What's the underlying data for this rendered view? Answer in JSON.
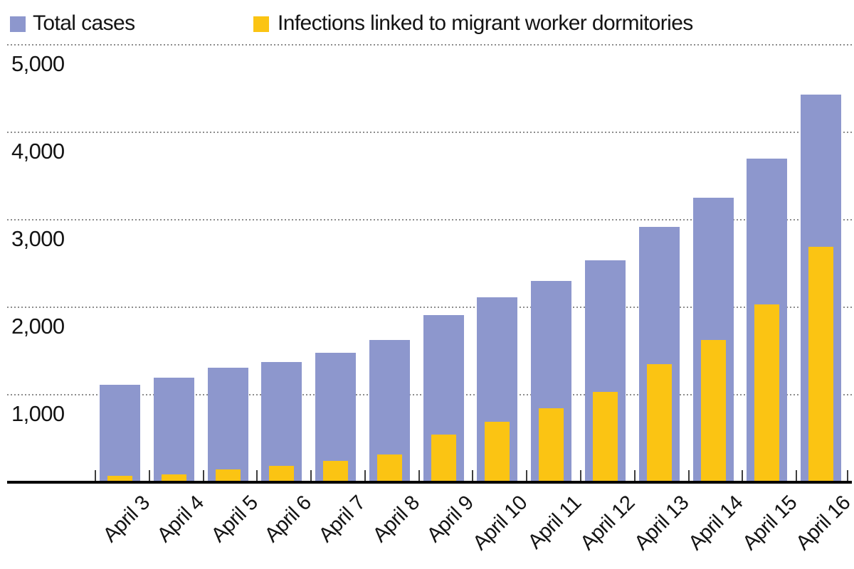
{
  "legend": [
    {
      "label": "Total cases",
      "color": "#8d97cd"
    },
    {
      "label": "Infections linked to migrant worker dormitories",
      "color": "#fbc413"
    }
  ],
  "chart_data": {
    "type": "bar",
    "subtype": "overlay-grouped",
    "title": "",
    "xlabel": "",
    "ylabel": "",
    "categories": [
      "April 3",
      "April 4",
      "April 5",
      "April 6",
      "April 7",
      "April 8",
      "April 9",
      "April 10",
      "April 11",
      "April 12",
      "April 13",
      "April 14",
      "April 15",
      "April 16"
    ],
    "series": [
      {
        "name": "Total cases",
        "color": "#8d97cd",
        "values": [
          1114,
          1189,
          1309,
          1375,
          1481,
          1623,
          1910,
          2108,
          2299,
          2532,
          2918,
          3252,
          3699,
          4427
        ]
      },
      {
        "name": "Infections linked to migrant worker dormitories",
        "color": "#fbc413",
        "values": [
          70,
          85,
          145,
          180,
          240,
          310,
          545,
          690,
          840,
          1030,
          1350,
          1620,
          2030,
          2689
        ]
      }
    ],
    "ylim": [
      0,
      5000
    ],
    "yticks": [
      5000,
      4000,
      3000,
      2000,
      1000
    ],
    "ytick_labels": [
      "5,000",
      "4,000",
      "3,000",
      "2,000",
      "1,000"
    ],
    "grid": "horizontal-dotted",
    "legend_position": "top-left",
    "axis_color": "#000000",
    "gridline_color": "#8d8d8d",
    "text_color": "#141414"
  }
}
